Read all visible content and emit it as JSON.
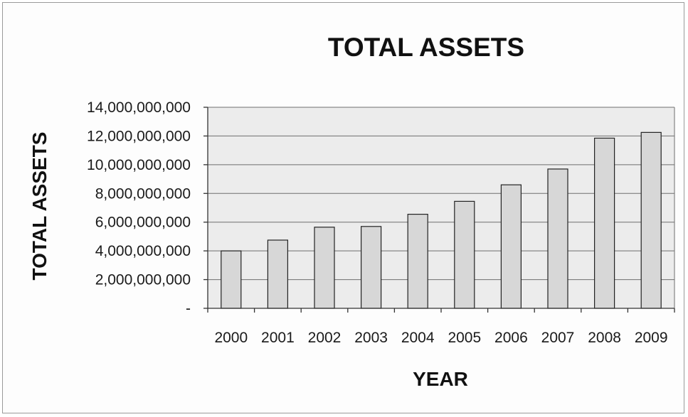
{
  "chart_data": {
    "type": "bar",
    "title": "TOTAL ASSETS",
    "xlabel": "YEAR",
    "ylabel": "TOTAL ASSETS",
    "categories": [
      "2000",
      "2001",
      "2002",
      "2003",
      "2004",
      "2005",
      "2006",
      "2007",
      "2008",
      "2009"
    ],
    "values": [
      4000000000,
      4750000000,
      5650000000,
      5700000000,
      6550000000,
      7450000000,
      8600000000,
      9700000000,
      11850000000,
      12250000000
    ],
    "ylim": [
      0,
      14000000000
    ],
    "yticks": [
      0,
      2000000000,
      4000000000,
      6000000000,
      8000000000,
      10000000000,
      12000000000,
      14000000000
    ],
    "ytick_labels": [
      "-",
      "2,000,000,000",
      "4,000,000,000",
      "6,000,000,000",
      "8,000,000,000",
      "10,000,000,000",
      "12,000,000,000",
      "14,000,000,000"
    ],
    "grid": true,
    "legend": "none",
    "colors": {
      "bar_fill": "#d7d7d7",
      "bar_stroke": "#222222",
      "plot_background": "#ececec",
      "grid": "#6e6e6e"
    }
  }
}
